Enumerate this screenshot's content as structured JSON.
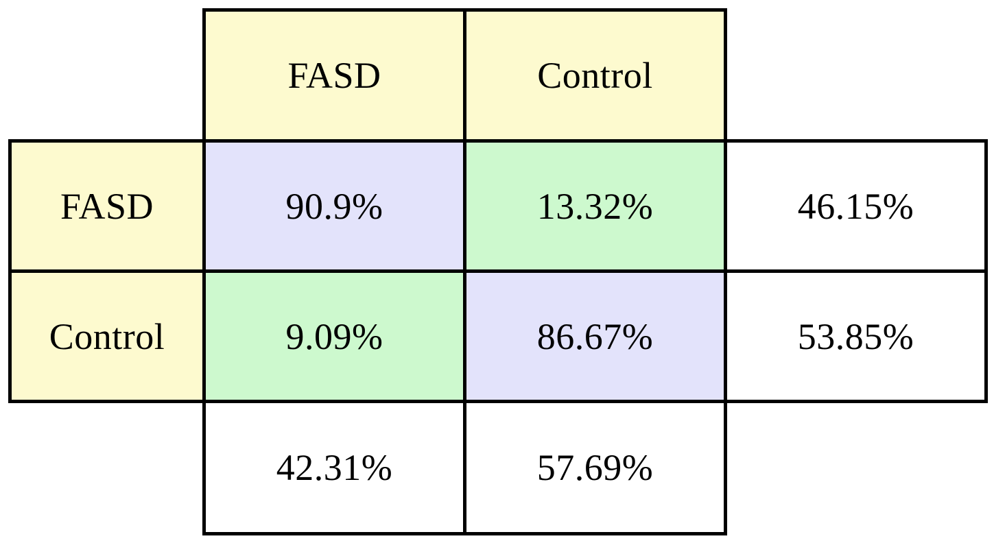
{
  "table": {
    "column_headers": [
      "FASD",
      "Control"
    ],
    "row_headers": [
      "FASD",
      "Control"
    ],
    "cells": [
      [
        "90.9%",
        "13.32%",
        "46.15%"
      ],
      [
        "9.09%",
        "86.67%",
        "53.85%"
      ]
    ],
    "column_totals": [
      "42.31%",
      "57.69%"
    ]
  },
  "chart_data": {
    "type": "table",
    "row_labels": [
      "FASD",
      "Control"
    ],
    "column_labels": [
      "FASD",
      "Control"
    ],
    "matrix_percent": [
      [
        90.9,
        13.32
      ],
      [
        9.09,
        86.67
      ]
    ],
    "row_totals_percent": [
      46.15,
      53.85
    ],
    "column_totals_percent": [
      42.31,
      57.69
    ],
    "diagonal_highlighted": true
  },
  "colors": {
    "header_bg": "#FDFACF",
    "diagonal_bg": "#E3E3FB",
    "off_diagonal_bg": "#CDF9CE",
    "total_bg": "#FFFFFF",
    "border": "#000000",
    "text": "#000000"
  }
}
